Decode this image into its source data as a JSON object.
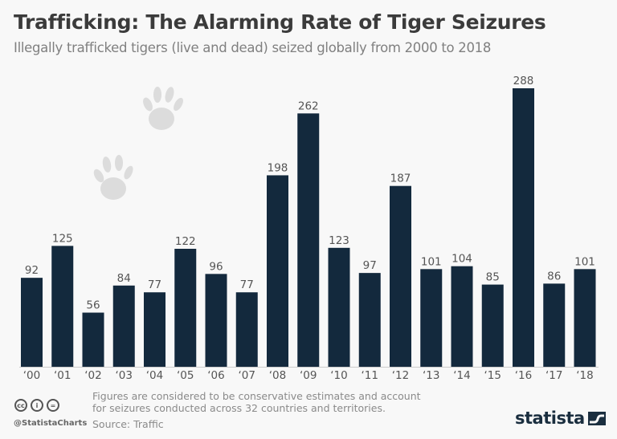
{
  "chart_data": {
    "type": "bar",
    "title": "Trafficking: The Alarming Rate of Tiger Seizures",
    "subtitle": "Illegally trafficked tigers (live and dead) seized globally from 2000 to 2018",
    "categories": [
      "‘00",
      "‘01",
      "‘02",
      "‘03",
      "‘04",
      "‘05",
      "‘06",
      "‘07",
      "‘08",
      "‘09",
      "‘10",
      "‘11",
      "‘12",
      "‘13",
      "‘14",
      "‘15",
      "‘16",
      "‘17",
      "‘18"
    ],
    "values": [
      92,
      125,
      56,
      84,
      77,
      122,
      96,
      77,
      198,
      262,
      123,
      97,
      187,
      101,
      104,
      85,
      288,
      86,
      101
    ],
    "xlabel": "",
    "ylabel": "",
    "ylim": [
      0,
      288
    ],
    "grid": false,
    "legend": "none",
    "bar_color": "#13293d"
  },
  "footer": {
    "note": "Figures are considered to be conservative estimates and account for seizures conducted across 32 countries and territories.",
    "source": "Source: Traffic",
    "handle": "@StatistaCharts",
    "cc_icons": [
      {
        "name": "cc-icon",
        "glyph": "cc"
      },
      {
        "name": "attribution-icon",
        "glyph": "i"
      },
      {
        "name": "no-derivatives-icon",
        "glyph": "="
      }
    ],
    "logo_text": "statista"
  }
}
